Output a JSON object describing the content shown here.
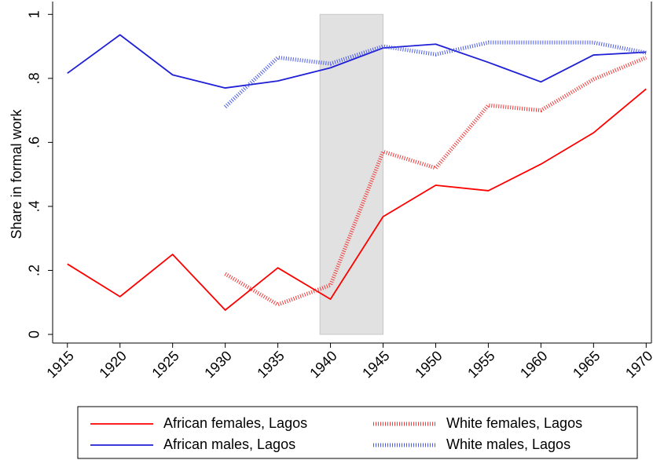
{
  "chart_data": {
    "type": "line",
    "y_label": "Share in formal work",
    "x": [
      1915,
      1920,
      1925,
      1930,
      1935,
      1940,
      1945,
      1950,
      1955,
      1960,
      1965,
      1970
    ],
    "series": [
      {
        "name": "African females, Lagos",
        "color": "#ff0000",
        "dash": "solid",
        "values": [
          0.22,
          0.118,
          0.25,
          0.076,
          0.208,
          0.11,
          0.368,
          0.466,
          0.449,
          0.532,
          0.63,
          0.767
        ]
      },
      {
        "name": "African males, Lagos",
        "color": "#1f1fd6",
        "dash": "solid",
        "values": [
          0.816,
          0.936,
          0.811,
          0.77,
          0.792,
          0.833,
          0.895,
          0.907,
          0.85,
          0.789,
          0.873,
          0.882
        ]
      },
      {
        "name": "White females, Lagos",
        "color": "#f03a3a",
        "dash": "dotted",
        "values": [
          null,
          null,
          null,
          0.189,
          0.093,
          0.154,
          0.571,
          0.52,
          0.716,
          0.7,
          0.797,
          0.865
        ]
      },
      {
        "name": "White males, Lagos",
        "color": "#4a5ae6",
        "dash": "dotted",
        "values": [
          null,
          null,
          null,
          0.711,
          0.865,
          0.846,
          0.9,
          0.875,
          0.912,
          0.912,
          0.912,
          0.88
        ]
      }
    ],
    "shade": [
      1939,
      1945
    ],
    "xlim": [
      1913.6,
      1970.5
    ],
    "ylim": [
      -0.027,
      1.04
    ],
    "xticks": [
      1915,
      1920,
      1925,
      1930,
      1935,
      1940,
      1945,
      1950,
      1955,
      1960,
      1965,
      1970
    ],
    "yticks": [
      0,
      {
        "value": 0.2,
        "label": ".2"
      },
      {
        "value": 0.4,
        "label": ".4"
      },
      {
        "value": 0.6,
        "label": ".6"
      },
      {
        "value": 0.8,
        "label": ".8"
      },
      1
    ],
    "legend": "bottom"
  }
}
